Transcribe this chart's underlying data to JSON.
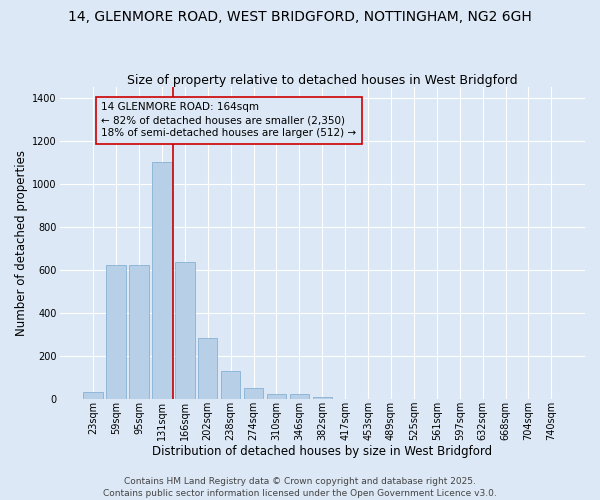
{
  "title_line1": "14, GLENMORE ROAD, WEST BRIDGFORD, NOTTINGHAM, NG2 6GH",
  "title_line2": "Size of property relative to detached houses in West Bridgford",
  "xlabel": "Distribution of detached houses by size in West Bridgford",
  "ylabel": "Number of detached properties",
  "categories": [
    "23sqm",
    "59sqm",
    "95sqm",
    "131sqm",
    "166sqm",
    "202sqm",
    "238sqm",
    "274sqm",
    "310sqm",
    "346sqm",
    "382sqm",
    "417sqm",
    "453sqm",
    "489sqm",
    "525sqm",
    "561sqm",
    "597sqm",
    "632sqm",
    "668sqm",
    "704sqm",
    "740sqm"
  ],
  "values": [
    35,
    625,
    625,
    1100,
    640,
    285,
    130,
    55,
    25,
    25,
    10,
    2,
    0,
    0,
    0,
    0,
    0,
    0,
    0,
    0,
    0
  ],
  "bar_color": "#b8cfe8",
  "bar_edge_color": "#7aaad0",
  "background_color": "#dce8f5",
  "grid_color": "#ffffff",
  "vline_color": "#cc0000",
  "vline_x_index": 4,
  "annotation_box_text": "14 GLENMORE ROAD: 164sqm\n← 82% of detached houses are smaller (2,350)\n18% of semi-detached houses are larger (512) →",
  "ylim": [
    0,
    1450
  ],
  "yticks": [
    0,
    200,
    400,
    600,
    800,
    1000,
    1200,
    1400
  ],
  "title_fontsize": 10,
  "subtitle_fontsize": 9,
  "axis_label_fontsize": 8.5,
  "tick_fontsize": 7,
  "annotation_fontsize": 7.5,
  "footer_fontsize": 6.5,
  "footer_line1": "Contains HM Land Registry data © Crown copyright and database right 2025.",
  "footer_line2": "Contains public sector information licensed under the Open Government Licence v3.0."
}
